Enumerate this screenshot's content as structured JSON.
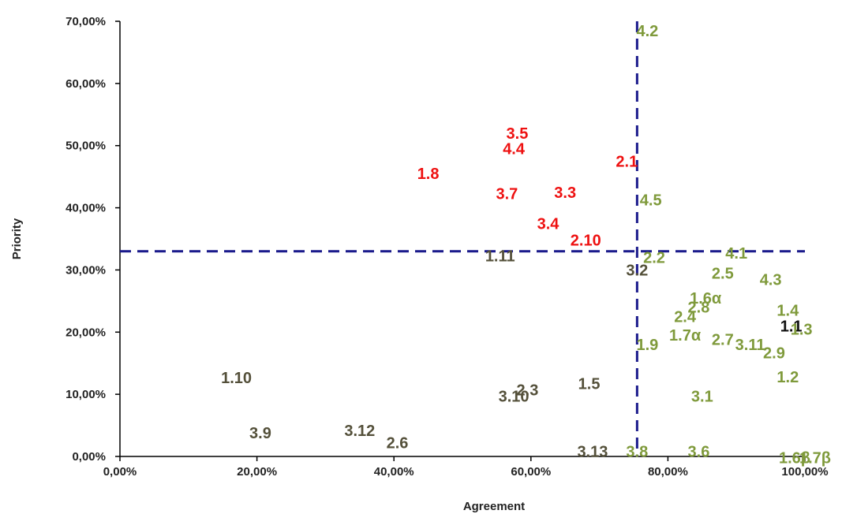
{
  "chart_data": {
    "type": "scatter",
    "title": "",
    "xlabel": "Agreement",
    "ylabel": "Priority",
    "xlim": [
      0,
      100
    ],
    "ylim": [
      0,
      70
    ],
    "x_ticks": [
      "0,00%",
      "20,00%",
      "40,00%",
      "60,00%",
      "80,00%",
      "100,00%"
    ],
    "y_ticks": [
      "0,00%",
      "10,00%",
      "20,00%",
      "30,00%",
      "40,00%",
      "50,00%",
      "60,00%",
      "70,00%"
    ],
    "x_tick_values": [
      0,
      20,
      40,
      60,
      80,
      100
    ],
    "y_tick_values": [
      0,
      10,
      20,
      30,
      40,
      50,
      60,
      70
    ],
    "threshold_x": 75.5,
    "threshold_y": 33,
    "grid": false,
    "legend": "none",
    "colors": {
      "red": "#ee1111",
      "green": "#7f9a3b",
      "brown": "#54503a",
      "black": "#111111",
      "dashed_line": "#1a1a8c",
      "axis": "#000000"
    },
    "points": [
      {
        "label": "4.2",
        "x": 77,
        "y": 68.5,
        "color": "green"
      },
      {
        "label": "3.5",
        "x": 58,
        "y": 52,
        "color": "red"
      },
      {
        "label": "4.4",
        "x": 57.5,
        "y": 49.5,
        "color": "red"
      },
      {
        "label": "2.1",
        "x": 74,
        "y": 47.5,
        "color": "red"
      },
      {
        "label": "1.8",
        "x": 45,
        "y": 45.5,
        "color": "red"
      },
      {
        "label": "3.7",
        "x": 56.5,
        "y": 42.3,
        "color": "red"
      },
      {
        "label": "3.3",
        "x": 65,
        "y": 42.5,
        "color": "red"
      },
      {
        "label": "4.5",
        "x": 77.5,
        "y": 41.3,
        "color": "green"
      },
      {
        "label": "3.4",
        "x": 62.5,
        "y": 37.5,
        "color": "red"
      },
      {
        "label": "2.10",
        "x": 68,
        "y": 34.8,
        "color": "red"
      },
      {
        "label": "1.11",
        "x": 55.5,
        "y": 32.3,
        "color": "brown"
      },
      {
        "label": "2.2",
        "x": 78,
        "y": 32,
        "color": "green"
      },
      {
        "label": "4.1",
        "x": 90,
        "y": 32.7,
        "color": "green"
      },
      {
        "label": "3.2",
        "x": 75.5,
        "y": 30,
        "color": "brown"
      },
      {
        "label": "2.5",
        "x": 88,
        "y": 29.5,
        "color": "green"
      },
      {
        "label": "4.3",
        "x": 95,
        "y": 28.5,
        "color": "green"
      },
      {
        "label": "1.6α",
        "x": 85.5,
        "y": 25.5,
        "color": "green"
      },
      {
        "label": "2.8",
        "x": 84.5,
        "y": 24,
        "color": "green"
      },
      {
        "label": "1.4",
        "x": 97.5,
        "y": 23.5,
        "color": "green"
      },
      {
        "label": "2.4",
        "x": 82.5,
        "y": 22.5,
        "color": "green"
      },
      {
        "label": "1.1",
        "x": 98,
        "y": 21,
        "color": "black"
      },
      {
        "label": "1.3",
        "x": 99.5,
        "y": 20.5,
        "color": "green"
      },
      {
        "label": "1.7α",
        "x": 82.5,
        "y": 19.5,
        "color": "green"
      },
      {
        "label": "2.7",
        "x": 88,
        "y": 18.8,
        "color": "green"
      },
      {
        "label": "3.11",
        "x": 92,
        "y": 18,
        "color": "green"
      },
      {
        "label": "1.9",
        "x": 77,
        "y": 18,
        "color": "green"
      },
      {
        "label": "2.9",
        "x": 95.5,
        "y": 16.7,
        "color": "green"
      },
      {
        "label": "1.10",
        "x": 17,
        "y": 12.7,
        "color": "brown"
      },
      {
        "label": "1.2",
        "x": 97.5,
        "y": 12.8,
        "color": "green"
      },
      {
        "label": "1.5",
        "x": 68.5,
        "y": 11.7,
        "color": "brown"
      },
      {
        "label": "2.3",
        "x": 59.5,
        "y": 10.7,
        "color": "brown"
      },
      {
        "label": "3.10",
        "x": 57.5,
        "y": 9.7,
        "color": "brown"
      },
      {
        "label": "3.1",
        "x": 85,
        "y": 9.7,
        "color": "green"
      },
      {
        "label": "3.12",
        "x": 35,
        "y": 4.2,
        "color": "brown"
      },
      {
        "label": "3.9",
        "x": 20.5,
        "y": 3.8,
        "color": "brown"
      },
      {
        "label": "2.6",
        "x": 40.5,
        "y": 2.2,
        "color": "brown"
      },
      {
        "label": "3.13",
        "x": 69,
        "y": 0.8,
        "color": "brown"
      },
      {
        "label": "3.8",
        "x": 75.5,
        "y": 0.8,
        "color": "green"
      },
      {
        "label": "3.6",
        "x": 84.5,
        "y": 0.8,
        "color": "green"
      },
      {
        "label": "1.6β",
        "x": 98.5,
        "y": -0.2,
        "color": "green"
      },
      {
        "label": "1.7β",
        "x": 101.5,
        "y": -0.2,
        "color": "green"
      }
    ]
  }
}
